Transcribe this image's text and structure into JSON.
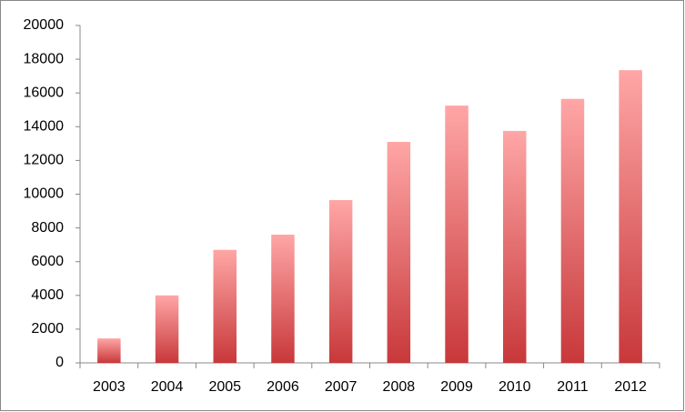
{
  "chart_data": {
    "type": "bar",
    "categories": [
      "2003",
      "2004",
      "2005",
      "2006",
      "2007",
      "2008",
      "2009",
      "2010",
      "2011",
      "2012"
    ],
    "values": [
      1450,
      4000,
      6700,
      7600,
      9650,
      13100,
      15250,
      13750,
      15650,
      17350
    ],
    "colors": [
      "#ffa6a6",
      "#c8383a"
    ],
    "ylim": [
      0,
      20000
    ],
    "yticks": [
      0,
      2000,
      4000,
      6000,
      8000,
      10000,
      12000,
      14000,
      16000,
      18000,
      20000
    ],
    "grid": false
  }
}
